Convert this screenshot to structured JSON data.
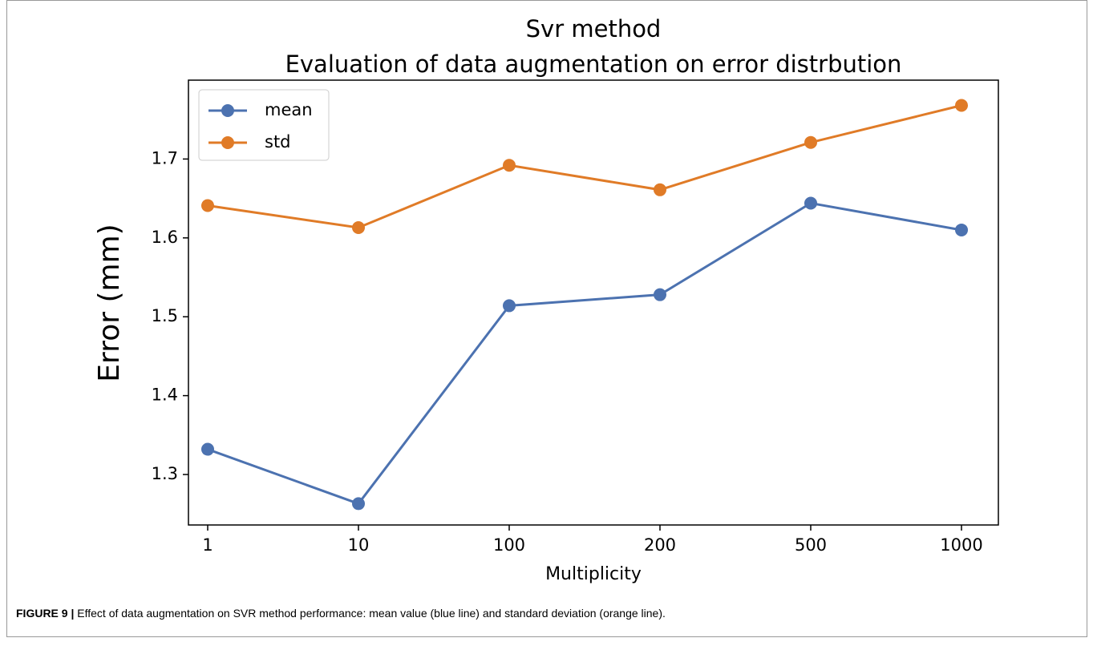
{
  "chart_data": {
    "type": "line",
    "title": "Svr method",
    "subtitle": "Evaluation of data augmentation on error distrbution",
    "x_label": "Multiplicity",
    "y_label": "Error (mm)",
    "categories": [
      "1",
      "10",
      "100",
      "200",
      "500",
      "1000"
    ],
    "series": [
      {
        "name": "mean",
        "color": "#4c72b0",
        "values": [
          1.332,
          1.263,
          1.514,
          1.528,
          1.644,
          1.61
        ]
      },
      {
        "name": "std",
        "color": "#e07b27",
        "values": [
          1.641,
          1.613,
          1.692,
          1.661,
          1.721,
          1.768
        ]
      }
    ],
    "ylim": [
      1.236,
      1.8
    ],
    "yticks": [
      1.3,
      1.4,
      1.5,
      1.6,
      1.7
    ],
    "grid": false,
    "legend": "upper left"
  },
  "figure_caption": {
    "label": "FIGURE 9 |",
    "text": "Effect of data augmentation on SVR method performance: mean value (blue line) and standard deviation (orange line)."
  }
}
